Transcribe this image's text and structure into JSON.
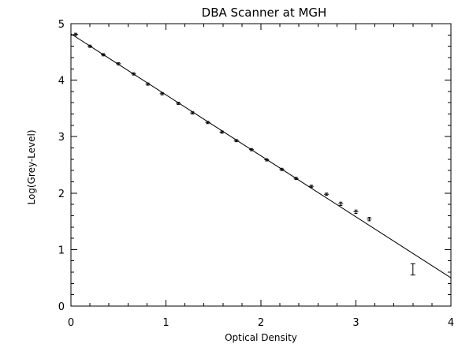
{
  "chart_data": {
    "type": "scatter",
    "title": "DBA Scanner at MGH",
    "xlabel": "Optical Density",
    "ylabel": "Log(Grey-Level)",
    "xlim": [
      0,
      4
    ],
    "ylim": [
      0,
      5
    ],
    "xticks": [
      0,
      1,
      2,
      3,
      4
    ],
    "yticks": [
      0,
      1,
      2,
      3,
      4,
      5
    ],
    "grid": false,
    "legend": "none",
    "series": [
      {
        "points": [
          {
            "x": 0.05,
            "y": 4.81,
            "err": 0.02
          },
          {
            "x": 0.2,
            "y": 4.6,
            "err": 0.02
          },
          {
            "x": 0.34,
            "y": 4.45,
            "err": 0.02
          },
          {
            "x": 0.5,
            "y": 4.29,
            "err": 0.02
          },
          {
            "x": 0.66,
            "y": 4.11,
            "err": 0.02
          },
          {
            "x": 0.81,
            "y": 3.93,
            "err": 0.02
          },
          {
            "x": 0.96,
            "y": 3.76,
            "err": 0.02
          },
          {
            "x": 1.13,
            "y": 3.59,
            "err": 0.02
          },
          {
            "x": 1.28,
            "y": 3.42,
            "err": 0.02
          },
          {
            "x": 1.44,
            "y": 3.25,
            "err": 0.02
          },
          {
            "x": 1.59,
            "y": 3.08,
            "err": 0.02
          },
          {
            "x": 1.74,
            "y": 2.93,
            "err": 0.02
          },
          {
            "x": 1.9,
            "y": 2.77,
            "err": 0.02
          },
          {
            "x": 2.06,
            "y": 2.59,
            "err": 0.02
          },
          {
            "x": 2.22,
            "y": 2.42,
            "err": 0.02
          },
          {
            "x": 2.37,
            "y": 2.26,
            "err": 0.02
          },
          {
            "x": 2.53,
            "y": 2.12,
            "err": 0.02
          },
          {
            "x": 2.69,
            "y": 1.98,
            "err": 0.02
          },
          {
            "x": 2.84,
            "y": 1.81,
            "err": 0.03
          },
          {
            "x": 3.0,
            "y": 1.67,
            "err": 0.03
          },
          {
            "x": 3.14,
            "y": 1.54,
            "err": 0.03
          }
        ]
      }
    ],
    "fit_line": {
      "x": [
        0,
        4
      ],
      "y": [
        4.82,
        0.5
      ]
    },
    "sample_errorbar": {
      "x": 3.6,
      "y": 0.65,
      "err": 0.1
    }
  }
}
